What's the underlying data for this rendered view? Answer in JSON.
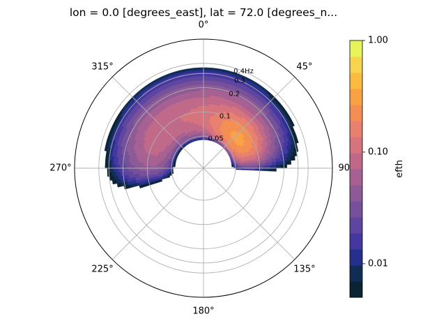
{
  "chart_data": {
    "type": "polar-contourf",
    "title": "lon = 0.0 [degrees_east], lat = 72.0 [degrees_n...",
    "theta_zero_location": "N",
    "theta_direction": "clockwise",
    "direction_ticks": [
      {
        "angle": 0,
        "label": "0°"
      },
      {
        "angle": 45,
        "label": "45°"
      },
      {
        "angle": 90,
        "label": "90°"
      },
      {
        "angle": 135,
        "label": "135°"
      },
      {
        "angle": 180,
        "label": "180°"
      },
      {
        "angle": 225,
        "label": "225°"
      },
      {
        "angle": 270,
        "label": "270°"
      },
      {
        "angle": 315,
        "label": "315°"
      }
    ],
    "radial_ticks": [
      {
        "value": 0.05,
        "label": "0.05"
      },
      {
        "value": 0.1,
        "label": "0.1"
      },
      {
        "value": 0.2,
        "label": "0.2"
      },
      {
        "value": 0.3,
        "label": "0.3"
      },
      {
        "value": 0.4,
        "label": "0.4Hz"
      }
    ],
    "radial_scale": "log",
    "rlim": [
      0.02,
      0.8
    ],
    "colorbar": {
      "label": "efth",
      "scale": "log",
      "ticks": [
        {
          "value": 0.01,
          "label": "0.01"
        },
        {
          "value": 0.1,
          "label": "0.10"
        },
        {
          "value": 1.0,
          "label": "1.00"
        }
      ],
      "range": [
        0.005,
        1.0
      ],
      "colors": [
        "#0b2333",
        "#122d55",
        "#272f8c",
        "#4537a0",
        "#5e459e",
        "#76509a",
        "#8d5a96",
        "#a66091",
        "#c06888",
        "#d6737d",
        "#e8806d",
        "#f48e52",
        "#f9a244",
        "#fbba42",
        "#f7d44d",
        "#e6f45a"
      ]
    },
    "spectrum": {
      "peak_direction_deg": 60,
      "peak_frequency_hz": 0.05,
      "peak_value": 1.0,
      "directional_extent_deg": [
        250,
        95
      ],
      "frequency_extent_hz": [
        0.045,
        0.4
      ]
    }
  },
  "colors": {
    "axes": "#000000",
    "grid": "#b0b0b0"
  }
}
